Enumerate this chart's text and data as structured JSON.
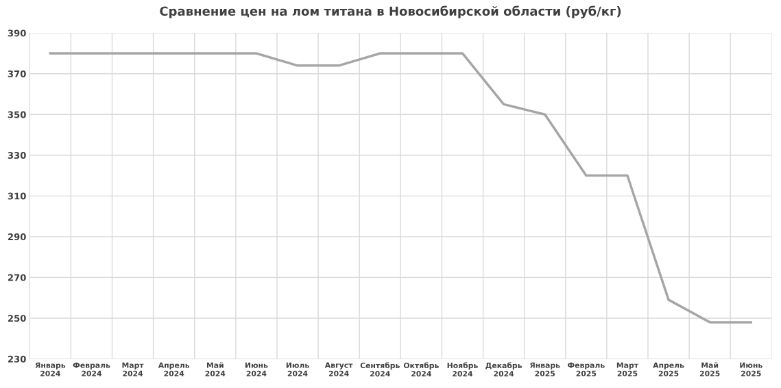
{
  "chart_data": {
    "type": "line",
    "title": "Сравнение цен на лом титана в Новосибирской области (руб/кг)",
    "categories": [
      "Январь\n2024",
      "Февраль\n2024",
      "Март\n2024",
      "Апрель\n2024",
      "Май\n2024",
      "Июнь\n2024",
      "Июль\n2024",
      "Август\n2024",
      "Сентябрь\n2024",
      "Октябрь\n2024",
      "Ноябрь\n2024",
      "Декабрь\n2024",
      "Январь\n2025",
      "Февраль\n2025",
      "Март\n2025",
      "Апрель\n2025",
      "Май\n2025",
      "Июнь\n2025"
    ],
    "series": [
      {
        "color": "#a6a6a6",
        "values": [
          380,
          380,
          380,
          380,
          380,
          380,
          374,
          374,
          380,
          380,
          380,
          355,
          350,
          320,
          320,
          259,
          248,
          248
        ]
      }
    ],
    "ylim": [
      230,
      390
    ],
    "yticks": [
      230,
      250,
      270,
      290,
      310,
      330,
      350,
      370,
      390
    ],
    "grid": true,
    "marker": "none",
    "line_style": "solid"
  }
}
